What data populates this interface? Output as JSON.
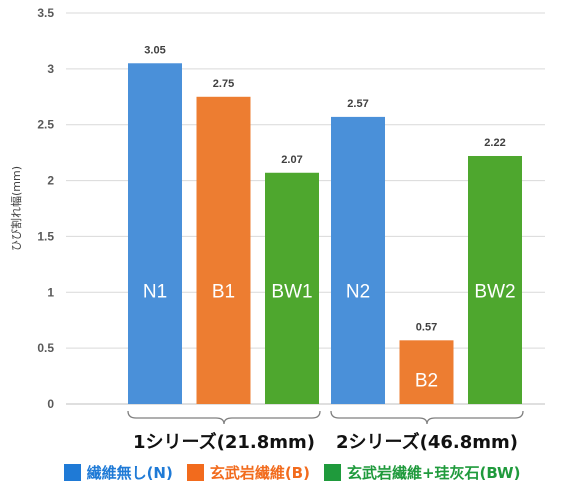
{
  "chart_data": {
    "type": "bar",
    "ylabel": "ひび割れ幅(mm)",
    "ylim": [
      0,
      3.5
    ],
    "yticks": [
      "0",
      "0.5",
      "1",
      "1.5",
      "2",
      "2.5",
      "3",
      "3.5"
    ],
    "grid": true,
    "legend_position": "bottom",
    "groups": [
      {
        "label": "1シリーズ(21.8mm)",
        "bars": [
          {
            "label": "N1",
            "value": 3.05,
            "value_label": "3.05",
            "series": 0
          },
          {
            "label": "B1",
            "value": 2.75,
            "value_label": "2.75",
            "series": 1
          },
          {
            "label": "BW1",
            "value": 2.07,
            "value_label": "2.07",
            "series": 2
          }
        ]
      },
      {
        "label": "2シリーズ(46.8mm)",
        "bars": [
          {
            "label": "N2",
            "value": 2.57,
            "value_label": "2.57",
            "series": 0
          },
          {
            "label": "B2",
            "value": 0.57,
            "value_label": "0.57",
            "series": 1
          },
          {
            "label": "BW2",
            "value": 2.22,
            "value_label": "2.22",
            "series": 2
          }
        ]
      }
    ],
    "series": [
      {
        "name": "繊維無し(N)",
        "color": "#4a90d9"
      },
      {
        "name": "玄武岩繊維(B)",
        "color": "#ed7d31"
      },
      {
        "name": "玄武岩繊維+珪灰石(BW)",
        "color": "#4ea72e"
      }
    ]
  },
  "legend_colors": [
    "#1f7ad6",
    "#f26b1d",
    "#1f9a3c"
  ]
}
